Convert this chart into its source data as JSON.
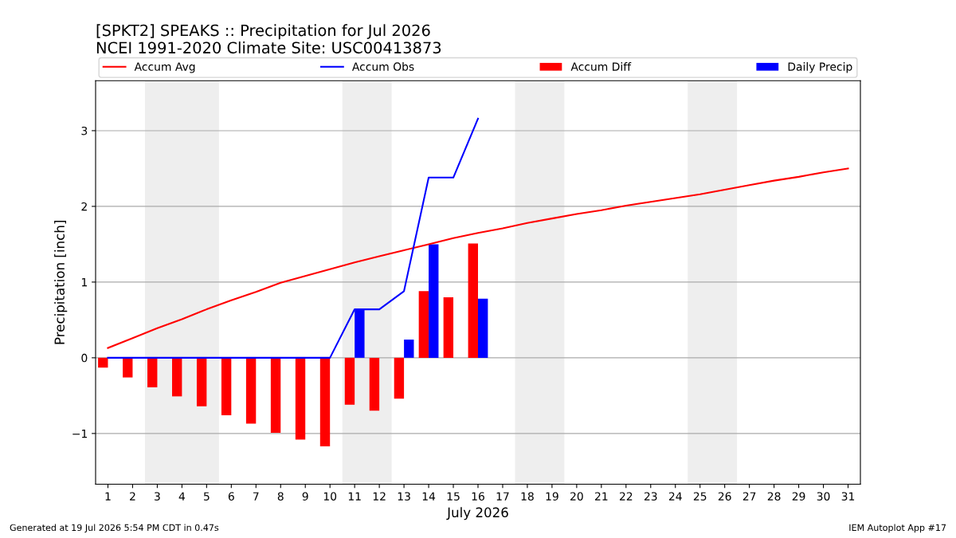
{
  "chart_data": {
    "type": "bar",
    "title": "[SPKT2] SPEAKS :: Precipitation for Jul 2026\nNCEI 1991-2020 Climate Site: USC00413873",
    "xlabel": "July 2026",
    "ylabel": "Precipitation [inch]",
    "categories": [
      "1",
      "2",
      "3",
      "4",
      "5",
      "6",
      "7",
      "8",
      "9",
      "10",
      "11",
      "12",
      "13",
      "14",
      "15",
      "16",
      "17",
      "18",
      "19",
      "20",
      "21",
      "22",
      "23",
      "24",
      "25",
      "26",
      "27",
      "28",
      "29",
      "30",
      "31"
    ],
    "series": [
      {
        "name": "Accum Avg",
        "type": "line",
        "color": "#ff0000",
        "values": [
          0.13,
          0.26,
          0.39,
          0.51,
          0.64,
          0.76,
          0.87,
          0.99,
          1.08,
          1.17,
          1.26,
          1.34,
          1.42,
          1.5,
          1.58,
          1.65,
          1.71,
          1.78,
          1.84,
          1.9,
          1.95,
          2.01,
          2.06,
          2.11,
          2.16,
          2.22,
          2.28,
          2.34,
          2.39,
          2.45,
          2.5
        ]
      },
      {
        "name": "Accum Obs",
        "type": "line",
        "color": "#0000ff",
        "values": [
          0,
          0,
          0,
          0,
          0,
          0,
          0,
          0,
          0,
          0,
          0.64,
          0.64,
          0.88,
          2.38,
          2.38,
          3.16,
          null,
          null,
          null,
          null,
          null,
          null,
          null,
          null,
          null,
          null,
          null,
          null,
          null,
          null,
          null
        ]
      },
      {
        "name": "Accum Diff",
        "color": "#ff0000",
        "values": [
          -0.13,
          -0.26,
          -0.39,
          -0.51,
          -0.64,
          -0.76,
          -0.87,
          -0.99,
          -1.08,
          -1.17,
          -0.62,
          -0.7,
          -0.54,
          0.88,
          0.8,
          1.51,
          null,
          null,
          null,
          null,
          null,
          null,
          null,
          null,
          null,
          null,
          null,
          null,
          null,
          null,
          null
        ]
      },
      {
        "name": "Daily Precip",
        "color": "#0000ff",
        "values": [
          0,
          0,
          0,
          0,
          0,
          0,
          0,
          0,
          0,
          0,
          0.64,
          0,
          0.24,
          1.5,
          0,
          0.78,
          null,
          null,
          null,
          null,
          null,
          null,
          null,
          null,
          null,
          null,
          null,
          null,
          null,
          null,
          null
        ]
      }
    ],
    "ylim": [
      -1.67,
      3.66
    ],
    "yticks": [
      {
        "value": -1,
        "label": "−1"
      },
      0,
      1,
      2,
      3
    ],
    "grid": "y",
    "legend": "top",
    "bands": [
      {
        "axis": "x",
        "from": "3",
        "to": "5",
        "color": "#eeeeee"
      },
      {
        "axis": "x",
        "from": "11",
        "to": "12",
        "color": "#eeeeee"
      },
      {
        "axis": "x",
        "from": "18",
        "to": "19",
        "color": "#eeeeee"
      },
      {
        "axis": "x",
        "from": "25",
        "to": "26",
        "color": "#eeeeee"
      }
    ],
    "annotations": [
      "Generated at 19 Jul 2026 5:54 PM CDT in 0.47s",
      "IEM Autoplot App #17"
    ]
  }
}
